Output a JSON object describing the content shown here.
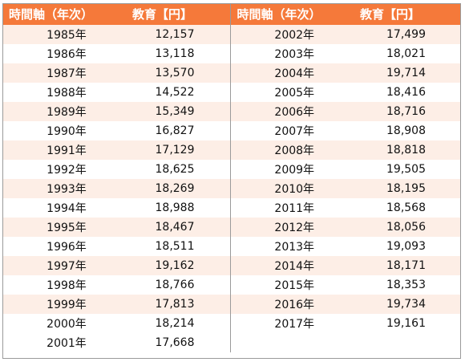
{
  "header": {
    "year_label": "時間軸（年次）",
    "value_label": "教育【円】"
  },
  "colors": {
    "header_bg": "#f5793a",
    "stripe": "#fdeee6"
  },
  "left": [
    {
      "year": "1985年",
      "value": "12,157"
    },
    {
      "year": "1986年",
      "value": "13,118"
    },
    {
      "year": "1987年",
      "value": "13,570"
    },
    {
      "year": "1988年",
      "value": "14,522"
    },
    {
      "year": "1989年",
      "value": "15,349"
    },
    {
      "year": "1990年",
      "value": "16,827"
    },
    {
      "year": "1991年",
      "value": "17,129"
    },
    {
      "year": "1992年",
      "value": "18,625"
    },
    {
      "year": "1993年",
      "value": "18,269"
    },
    {
      "year": "1994年",
      "value": "18,988"
    },
    {
      "year": "1995年",
      "value": "18,467"
    },
    {
      "year": "1996年",
      "value": "18,511"
    },
    {
      "year": "1997年",
      "value": "19,162"
    },
    {
      "year": "1998年",
      "value": "18,766"
    },
    {
      "year": "1999年",
      "value": "17,813"
    },
    {
      "year": "2000年",
      "value": "18,214"
    },
    {
      "year": "2001年",
      "value": "17,668"
    }
  ],
  "right": [
    {
      "year": "2002年",
      "value": "17,499"
    },
    {
      "year": "2003年",
      "value": "18,021"
    },
    {
      "year": "2004年",
      "value": "19,714"
    },
    {
      "year": "2005年",
      "value": "18,416"
    },
    {
      "year": "2006年",
      "value": "18,716"
    },
    {
      "year": "2007年",
      "value": "18,908"
    },
    {
      "year": "2008年",
      "value": "18,818"
    },
    {
      "year": "2009年",
      "value": "19,505"
    },
    {
      "year": "2010年",
      "value": "18,195"
    },
    {
      "year": "2011年",
      "value": "18,568"
    },
    {
      "year": "2012年",
      "value": "18,056"
    },
    {
      "year": "2013年",
      "value": "19,093"
    },
    {
      "year": "2014年",
      "value": "18,171"
    },
    {
      "year": "2015年",
      "value": "18,353"
    },
    {
      "year": "2016年",
      "value": "19,734"
    },
    {
      "year": "2017年",
      "value": "19,161"
    }
  ]
}
